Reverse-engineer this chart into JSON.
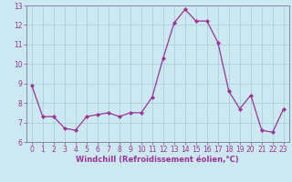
{
  "x": [
    0,
    1,
    2,
    3,
    4,
    5,
    6,
    7,
    8,
    9,
    10,
    11,
    12,
    13,
    14,
    15,
    16,
    17,
    18,
    19,
    20,
    21,
    22,
    23
  ],
  "y": [
    8.9,
    7.3,
    7.3,
    6.7,
    6.6,
    7.3,
    7.4,
    7.5,
    7.3,
    7.5,
    7.5,
    8.3,
    10.3,
    12.1,
    12.8,
    12.2,
    12.2,
    11.1,
    8.6,
    7.7,
    8.4,
    6.6,
    6.5,
    7.7
  ],
  "line_color": "#993399",
  "marker": "D",
  "marker_size": 2.0,
  "bg_color": "#cce8f0",
  "grid_color": "#aacfdc",
  "xlabel": "Windchill (Refroidissement éolien,°C)",
  "xlabel_color": "#993399",
  "tick_color": "#993399",
  "spine_color": "#7a7a9a",
  "ylim": [
    6,
    13
  ],
  "xlim": [
    -0.5,
    23.5
  ],
  "yticks": [
    6,
    7,
    8,
    9,
    10,
    11,
    12,
    13
  ],
  "xticks": [
    0,
    1,
    2,
    3,
    4,
    5,
    6,
    7,
    8,
    9,
    10,
    11,
    12,
    13,
    14,
    15,
    16,
    17,
    18,
    19,
    20,
    21,
    22,
    23
  ],
  "tick_fontsize": 5.5,
  "xlabel_fontsize": 6.0
}
